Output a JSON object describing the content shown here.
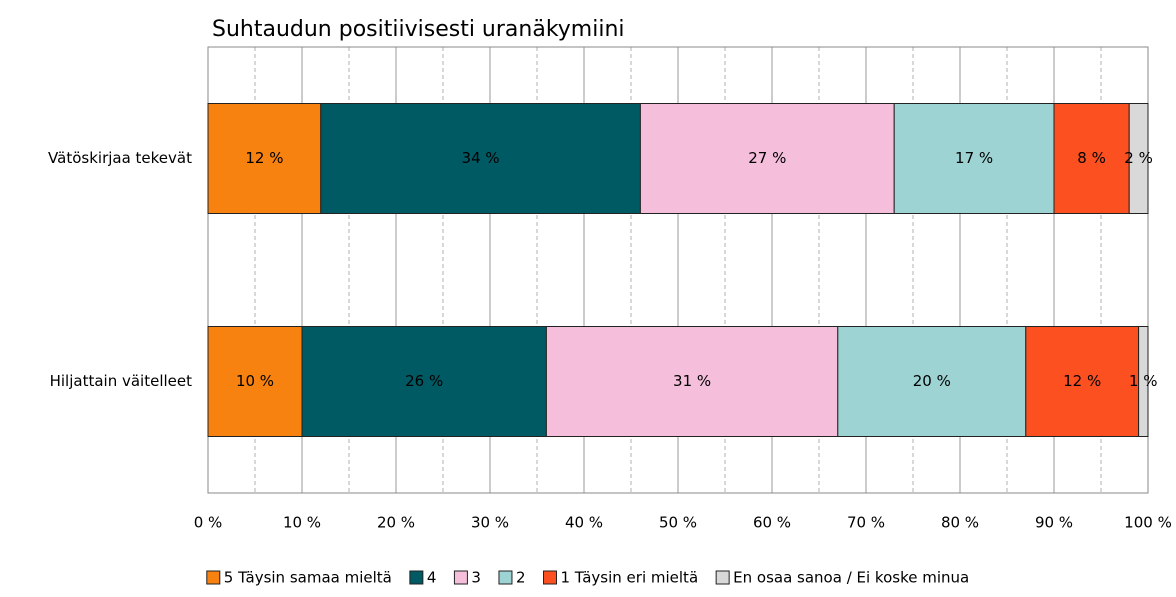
{
  "chart_data": {
    "type": "stacked-bar-horizontal",
    "title": "Suhtaudun positiivisesti uranäkymiini",
    "categories": [
      "Vätöskirjaa tekevät",
      "Hiljattain väitelleet"
    ],
    "series": [
      {
        "name": "5 Täysin samaa mieltä",
        "color": "#f7820f",
        "values": [
          12,
          10
        ],
        "value_labels": [
          "12 %",
          "10 %"
        ]
      },
      {
        "name": "4",
        "color": "#005a64",
        "values": [
          34,
          26
        ],
        "value_labels": [
          "34 %",
          "26 %"
        ]
      },
      {
        "name": "3",
        "color": "#f5bfdc",
        "values": [
          27,
          31
        ],
        "value_labels": [
          "27 %",
          "31 %"
        ]
      },
      {
        "name": "2",
        "color": "#9ed3d3",
        "values": [
          17,
          20
        ],
        "value_labels": [
          "17 %",
          "20 %"
        ]
      },
      {
        "name": "1 Täysin eri mieltä",
        "color": "#fc5020",
        "values": [
          8,
          12
        ],
        "value_labels": [
          "8 %",
          "12 %"
        ]
      },
      {
        "name": "En osaa sanoa / Ei koske minua",
        "color": "#d9d9d9",
        "values": [
          2,
          1
        ],
        "value_labels": [
          "2 %",
          "1 %"
        ]
      }
    ],
    "xlim": [
      0,
      100
    ],
    "xticks": [
      {
        "value": 0,
        "label": "0 %"
      },
      {
        "value": 10,
        "label": "10 %"
      },
      {
        "value": 20,
        "label": "20 %"
      },
      {
        "value": 30,
        "label": "30 %"
      },
      {
        "value": 40,
        "label": "40 %"
      },
      {
        "value": 50,
        "label": "50 %"
      },
      {
        "value": 60,
        "label": "60 %"
      },
      {
        "value": 70,
        "label": "70 %"
      },
      {
        "value": 80,
        "label": "80 %"
      },
      {
        "value": 90,
        "label": "90 %"
      },
      {
        "value": 100,
        "label": "100 %"
      }
    ],
    "xminorticks": [
      5,
      15,
      25,
      35,
      45,
      55,
      65,
      75,
      85,
      95
    ],
    "grid": true,
    "legend": "bottom"
  }
}
